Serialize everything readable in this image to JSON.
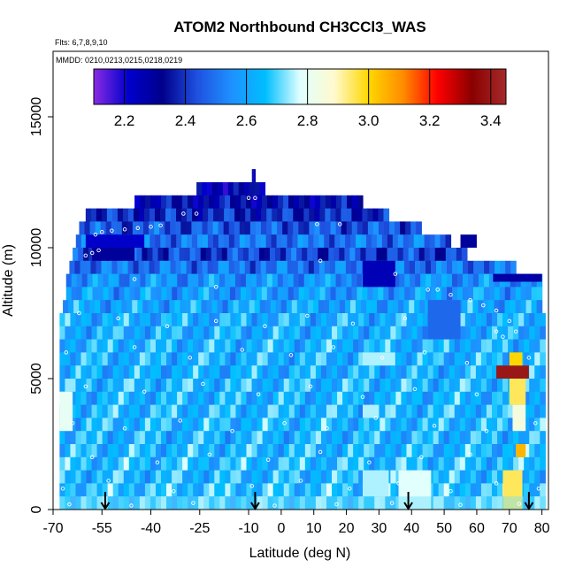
{
  "chart_data": {
    "type": "heatmap",
    "title": "ATOM2 Northbound CH3CCl3_WAS",
    "subtitle_flights": "Flts: 6,7,8,9,10",
    "subtitle_dates": "MMDD: 0210,0213,0215,0218,0219",
    "xlabel": "Latitude (deg N)",
    "ylabel": "Altitude (m)",
    "xlim": [
      -70,
      82
    ],
    "ylim": [
      0,
      17500
    ],
    "x_ticks": [
      {
        "value": -70,
        "label": "-70"
      },
      {
        "value": -55,
        "label": "-55"
      },
      {
        "value": -40,
        "label": "-40"
      },
      {
        "value": -25,
        "label": "-25"
      },
      {
        "value": -10,
        "label": "-10"
      },
      {
        "value": 0,
        "label": "0"
      },
      {
        "value": 10,
        "label": "10"
      },
      {
        "value": 20,
        "label": "20"
      },
      {
        "value": 30,
        "label": "30"
      },
      {
        "value": 40,
        "label": "40"
      },
      {
        "value": 50,
        "label": "50"
      },
      {
        "value": 60,
        "label": "60"
      },
      {
        "value": 70,
        "label": "70"
      },
      {
        "value": 80,
        "label": "80"
      }
    ],
    "y_ticks": [
      {
        "value": 0,
        "label": "0"
      },
      {
        "value": 5000,
        "label": "5000"
      },
      {
        "value": 10000,
        "label": "10000"
      },
      {
        "value": 15000,
        "label": "15000"
      }
    ],
    "colorbar": {
      "min": 2.1,
      "max": 3.45,
      "stops": [
        "#8a2be2",
        "#0000cd",
        "#00008b",
        "#1e50e0",
        "#1e90ff",
        "#00bfff",
        "#e0ffff",
        "#fffacd",
        "#ffd700",
        "#ff8c00",
        "#ff0000",
        "#8b0000",
        "#a52a2a"
      ],
      "ticks": [
        {
          "value": 2.2,
          "label": "2.2"
        },
        {
          "value": 2.4,
          "label": "2.4"
        },
        {
          "value": 2.6,
          "label": "2.6"
        },
        {
          "value": 2.8,
          "label": "2.8"
        },
        {
          "value": 3.0,
          "label": "3.0"
        },
        {
          "value": 3.2,
          "label": "3.2"
        },
        {
          "value": 3.4,
          "label": "3.4"
        }
      ]
    },
    "curtain_rows": [
      {
        "alt": [
          12500,
          13000
        ],
        "lat": [
          -9,
          -8
        ],
        "value": 2.25
      },
      {
        "alt": [
          12000,
          12500
        ],
        "lat": [
          -26,
          -5
        ],
        "value": 2.28
      },
      {
        "alt": [
          11500,
          12000
        ],
        "lat": [
          -45,
          25
        ],
        "value": 2.32
      },
      {
        "alt": [
          11000,
          11500
        ],
        "lat": [
          -60,
          33
        ],
        "value": 2.38
      },
      {
        "alt": [
          10500,
          11000
        ],
        "lat": [
          -62,
          43
        ],
        "value": 2.45
      },
      {
        "alt": [
          10000,
          10500
        ],
        "lat": [
          -63,
          52
        ],
        "value": 2.5
      },
      {
        "alt": [
          9500,
          10000
        ],
        "lat": [
          -64,
          57
        ],
        "value": 2.42
      },
      {
        "alt": [
          9000,
          9500
        ],
        "lat": [
          -65,
          72
        ],
        "value": 2.5
      },
      {
        "alt": [
          8500,
          9000
        ],
        "lat": [
          -66,
          80
        ],
        "value": 2.56
      },
      {
        "alt": [
          8000,
          8500
        ],
        "lat": [
          -66,
          80
        ],
        "value": 2.58
      },
      {
        "alt": [
          7500,
          8000
        ],
        "lat": [
          -67,
          80
        ],
        "value": 2.6
      },
      {
        "alt": [
          7000,
          7500
        ],
        "lat": [
          -68,
          81
        ],
        "value": 2.62
      },
      {
        "alt": [
          6500,
          7000
        ],
        "lat": [
          -68,
          81
        ],
        "value": 2.62
      },
      {
        "alt": [
          6000,
          6500
        ],
        "lat": [
          -68,
          81
        ],
        "value": 2.63
      },
      {
        "alt": [
          5500,
          6000
        ],
        "lat": [
          -68,
          81
        ],
        "value": 2.63
      },
      {
        "alt": [
          5000,
          5500
        ],
        "lat": [
          -68,
          81
        ],
        "value": 2.62
      },
      {
        "alt": [
          4500,
          5000
        ],
        "lat": [
          -68,
          81
        ],
        "value": 2.64
      },
      {
        "alt": [
          4000,
          4500
        ],
        "lat": [
          -68,
          81
        ],
        "value": 2.63
      },
      {
        "alt": [
          3500,
          4000
        ],
        "lat": [
          -68,
          81
        ],
        "value": 2.64
      },
      {
        "alt": [
          3000,
          3500
        ],
        "lat": [
          -68,
          81
        ],
        "value": 2.64
      },
      {
        "alt": [
          2500,
          3000
        ],
        "lat": [
          -68,
          81
        ],
        "value": 2.63
      },
      {
        "alt": [
          2000,
          2500
        ],
        "lat": [
          -68,
          81
        ],
        "value": 2.64
      },
      {
        "alt": [
          1500,
          2000
        ],
        "lat": [
          -68,
          81
        ],
        "value": 2.65
      },
      {
        "alt": [
          1000,
          1500
        ],
        "lat": [
          -68,
          81
        ],
        "value": 2.64
      },
      {
        "alt": [
          500,
          1000
        ],
        "lat": [
          -68,
          81
        ],
        "value": 2.66
      },
      {
        "alt": [
          0,
          500
        ],
        "lat": [
          -68,
          81
        ],
        "value": 2.67
      }
    ],
    "features": [
      {
        "alt": [
          10000,
          10500
        ],
        "lat": [
          -60,
          -42
        ],
        "value": 2.22
      },
      {
        "alt": [
          9500,
          10000
        ],
        "lat": [
          -58,
          -45
        ],
        "value": 2.3
      },
      {
        "alt": [
          8500,
          9500
        ],
        "lat": [
          25,
          35
        ],
        "value": 2.25
      },
      {
        "alt": [
          10000,
          10500
        ],
        "lat": [
          55,
          60
        ],
        "value": 2.3
      },
      {
        "alt": [
          8700,
          9000
        ],
        "lat": [
          65,
          80
        ],
        "value": 2.28
      },
      {
        "alt": [
          5000,
          5500
        ],
        "lat": [
          66,
          76
        ],
        "value": 3.4
      },
      {
        "alt": [
          5500,
          6000
        ],
        "lat": [
          70,
          74
        ],
        "value": 3.0
      },
      {
        "alt": [
          4000,
          5000
        ],
        "lat": [
          70,
          75
        ],
        "value": 2.95
      },
      {
        "alt": [
          3000,
          4000
        ],
        "lat": [
          71,
          75
        ],
        "value": 2.85
      },
      {
        "alt": [
          2000,
          2500
        ],
        "lat": [
          72,
          75
        ],
        "value": 3.05
      },
      {
        "alt": [
          0,
          1500
        ],
        "lat": [
          68,
          74
        ],
        "value": 2.95
      },
      {
        "alt": [
          0,
          1500
        ],
        "lat": [
          36,
          46
        ],
        "value": 2.78
      },
      {
        "alt": [
          3000,
          4500
        ],
        "lat": [
          -68,
          -64
        ],
        "value": 2.8
      },
      {
        "alt": [
          5500,
          6000
        ],
        "lat": [
          25,
          35
        ],
        "value": 2.75
      },
      {
        "alt": [
          3500,
          4000
        ],
        "lat": [
          25,
          30
        ],
        "value": 2.75
      },
      {
        "alt": [
          500,
          1500
        ],
        "lat": [
          25,
          33
        ],
        "value": 2.75
      },
      {
        "alt": [
          6500,
          8000
        ],
        "lat": [
          45,
          55
        ],
        "value": 2.48
      },
      {
        "alt": [
          0,
          500
        ],
        "lat": [
          -68,
          81
        ],
        "value": 2.72
      }
    ],
    "flight_track_samples": [
      {
        "lat": -57,
        "alt": 10500
      },
      {
        "lat": -55,
        "alt": 10600
      },
      {
        "lat": -52,
        "alt": 10650
      },
      {
        "lat": -48,
        "alt": 10700
      },
      {
        "lat": -44,
        "alt": 10750
      },
      {
        "lat": -40,
        "alt": 10800
      },
      {
        "lat": -37,
        "alt": 10850
      },
      {
        "lat": -60,
        "alt": 9700
      },
      {
        "lat": -58,
        "alt": 9800
      },
      {
        "lat": -56,
        "alt": 9900
      },
      {
        "lat": -30,
        "alt": 11300
      },
      {
        "lat": -26,
        "alt": 11300
      },
      {
        "lat": -10,
        "alt": 11900
      },
      {
        "lat": -8,
        "alt": 11900
      },
      {
        "lat": 11,
        "alt": 10900
      },
      {
        "lat": 18,
        "alt": 10900
      },
      {
        "lat": 45,
        "alt": 8400
      },
      {
        "lat": 48,
        "alt": 8400
      },
      {
        "lat": 52,
        "alt": 8200
      },
      {
        "lat": 58,
        "alt": 8000
      },
      {
        "lat": 62,
        "alt": 7800
      },
      {
        "lat": 66,
        "alt": 7600
      },
      {
        "lat": 70,
        "alt": 7200
      },
      {
        "lat": 72,
        "alt": 6800
      },
      {
        "lat": 68,
        "alt": 6600
      },
      {
        "lat": 66,
        "alt": 6800
      },
      {
        "lat": -62,
        "alt": 7500
      },
      {
        "lat": -50,
        "alt": 7300
      },
      {
        "lat": -35,
        "alt": 7000
      },
      {
        "lat": -20,
        "alt": 7200
      },
      {
        "lat": -5,
        "alt": 7000
      },
      {
        "lat": 8,
        "alt": 7400
      },
      {
        "lat": 22,
        "alt": 7100
      },
      {
        "lat": 38,
        "alt": 7300
      },
      {
        "lat": -66,
        "alt": 6000
      },
      {
        "lat": -45,
        "alt": 6200
      },
      {
        "lat": -28,
        "alt": 5800
      },
      {
        "lat": -12,
        "alt": 6100
      },
      {
        "lat": 3,
        "alt": 5900
      },
      {
        "lat": 16,
        "alt": 6200
      },
      {
        "lat": 31,
        "alt": 5800
      },
      {
        "lat": 44,
        "alt": 6000
      },
      {
        "lat": 57,
        "alt": 5600
      },
      {
        "lat": 76,
        "alt": 5800
      },
      {
        "lat": -60,
        "alt": 4700
      },
      {
        "lat": -42,
        "alt": 4500
      },
      {
        "lat": -24,
        "alt": 4800
      },
      {
        "lat": -7,
        "alt": 4400
      },
      {
        "lat": 9,
        "alt": 4700
      },
      {
        "lat": 25,
        "alt": 4300
      },
      {
        "lat": 41,
        "alt": 4600
      },
      {
        "lat": 60,
        "alt": 4400
      },
      {
        "lat": -64,
        "alt": 3300
      },
      {
        "lat": -48,
        "alt": 3100
      },
      {
        "lat": -31,
        "alt": 3400
      },
      {
        "lat": -15,
        "alt": 3000
      },
      {
        "lat": 1,
        "alt": 3300
      },
      {
        "lat": 14,
        "alt": 3100
      },
      {
        "lat": 29,
        "alt": 3500
      },
      {
        "lat": 47,
        "alt": 3200
      },
      {
        "lat": 63,
        "alt": 3000
      },
      {
        "lat": 78,
        "alt": 3300
      },
      {
        "lat": -58,
        "alt": 2000
      },
      {
        "lat": -38,
        "alt": 1800
      },
      {
        "lat": -22,
        "alt": 2100
      },
      {
        "lat": -4,
        "alt": 1900
      },
      {
        "lat": 12,
        "alt": 2200
      },
      {
        "lat": 27,
        "alt": 1800
      },
      {
        "lat": 43,
        "alt": 2000
      },
      {
        "lat": 58,
        "alt": 2100
      },
      {
        "lat": -67,
        "alt": 800
      },
      {
        "lat": -53,
        "alt": 1100
      },
      {
        "lat": -33,
        "alt": 700
      },
      {
        "lat": -9,
        "alt": 900
      },
      {
        "lat": 6,
        "alt": 1100
      },
      {
        "lat": 21,
        "alt": 800
      },
      {
        "lat": 36,
        "alt": 1000
      },
      {
        "lat": 52,
        "alt": 700
      },
      {
        "lat": 66,
        "alt": 1000
      },
      {
        "lat": 79,
        "alt": 800
      },
      {
        "lat": -65,
        "alt": 200
      },
      {
        "lat": -46,
        "alt": 150
      },
      {
        "lat": -27,
        "alt": 250
      },
      {
        "lat": -2,
        "alt": 150
      },
      {
        "lat": 17,
        "alt": 200
      },
      {
        "lat": 34,
        "alt": 250
      },
      {
        "lat": 55,
        "alt": 180
      },
      {
        "lat": 73,
        "alt": 220
      },
      {
        "lat": 35,
        "alt": 9000
      },
      {
        "lat": 12,
        "alt": 9500
      },
      {
        "lat": -20,
        "alt": 8500
      },
      {
        "lat": -45,
        "alt": 8800
      }
    ],
    "arrow_lats": [
      -54,
      -8,
      39,
      76
    ]
  }
}
